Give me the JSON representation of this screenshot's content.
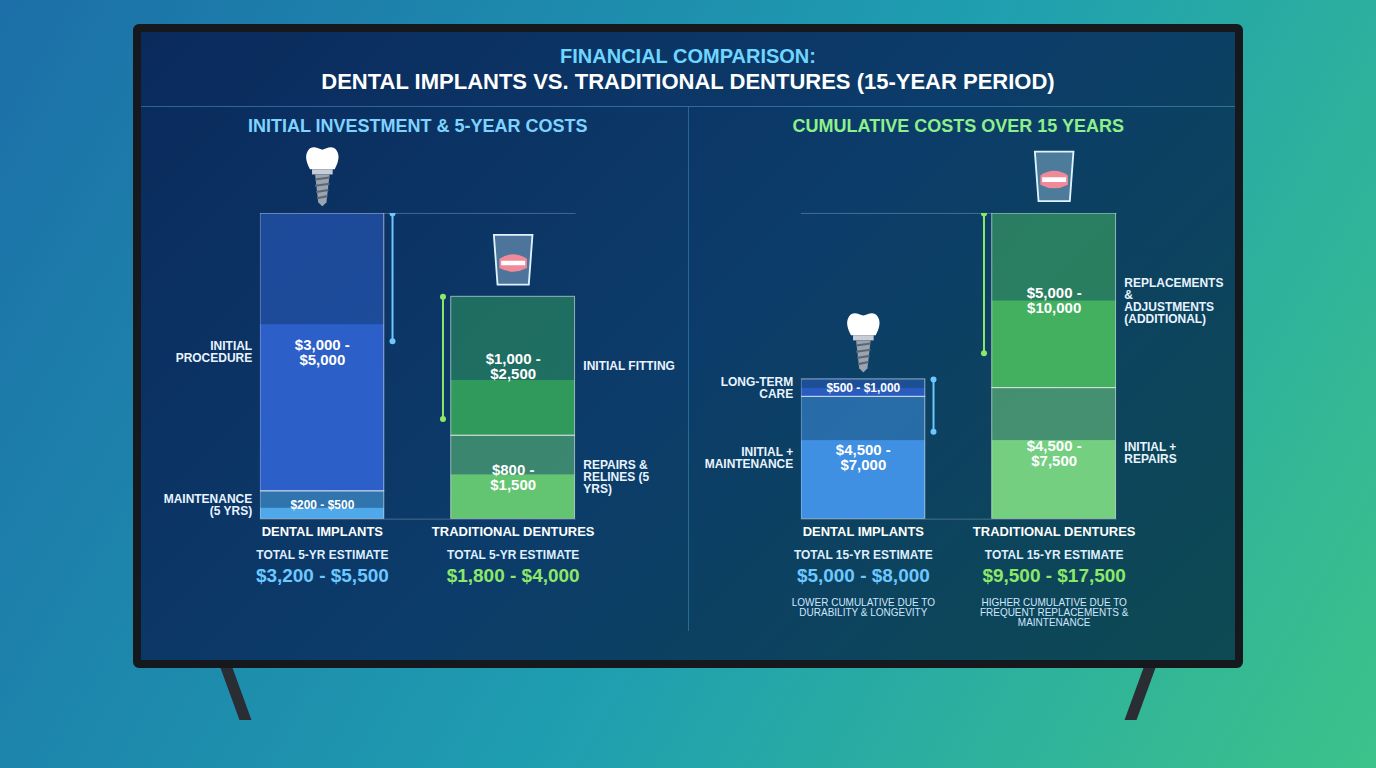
{
  "title": "FINANCIAL COMPARISON:",
  "subtitle": "DENTAL IMPLANTS VS. TRADITIONAL DENTURES (15-YEAR PERIOD)",
  "chart_data": [
    {
      "type": "bar",
      "stacked": true,
      "data_labels": true,
      "tick_labels": false,
      "title": "INITIAL INVESTMENT & 5-YEAR COSTS",
      "ylim": [
        0,
        5500
      ],
      "bars": [
        {
          "category": "DENTAL IMPLANTS",
          "color": "#6cc8ff",
          "segments": [
            {
              "name": "MAINTENANCE (5 YRS)",
              "low": 200,
              "high": 500,
              "value_label": "$200 - $500",
              "color": "#4fa8ea"
            },
            {
              "name": "INITIAL PROCEDURE",
              "low": 3000,
              "high": 5000,
              "value_label": "$3,000 - $5,000",
              "color": "#2d5fc8"
            }
          ],
          "total": {
            "name": "TOTAL 5-YR ESTIMATE",
            "low": 3200,
            "high": 5500,
            "value_label": "$3,200 - $5,500"
          }
        },
        {
          "category": "TRADITIONAL DENTURES",
          "color": "#8de86a",
          "segments": [
            {
              "name": "REPAIRS & RELINES (5 YRS)",
              "low": 800,
              "high": 1500,
              "value_label": "$800 - $1,500",
              "color": "#63c572"
            },
            {
              "name": "INITIAL FITTING",
              "low": 1000,
              "high": 2500,
              "value_label": "$1,000 - $2,500",
              "color": "#2f9a5c"
            }
          ],
          "total": {
            "name": "TOTAL 5-YR ESTIMATE",
            "low": 1800,
            "high": 4000,
            "value_label": "$1,800 - $4,000"
          }
        }
      ]
    },
    {
      "type": "bar",
      "stacked": true,
      "data_labels": true,
      "tick_labels": false,
      "title": "CUMULATIVE COSTS OVER 15 YEARS",
      "ylim": [
        0,
        17500
      ],
      "bars": [
        {
          "category": "DENTAL IMPLANTS",
          "color": "#6cc8ff",
          "segments": [
            {
              "name": "INITIAL + MAINTENANCE",
              "low": 4500,
              "high": 7000,
              "value_label": "$4,500 - $7,000",
              "color": "#3f8fe2"
            },
            {
              "name": "LONG-TERM CARE",
              "low": 500,
              "high": 1000,
              "value_label": "$500 - $1,000",
              "color": "#2a5cc0"
            }
          ],
          "total": {
            "name": "TOTAL 15-YR ESTIMATE",
            "low": 5000,
            "high": 8000,
            "value_label": "$5,000 - $8,000",
            "note": "LOWER CUMULATIVE DUE TO DURABILITY & LONGEVITY"
          }
        },
        {
          "category": "TRADITIONAL DENTURES",
          "color": "#8de86a",
          "segments": [
            {
              "name": "INITIAL + REPAIRS",
              "low": 4500,
              "high": 7500,
              "value_label": "$4,500 - $7,500",
              "color": "#74cf80"
            },
            {
              "name": "REPLACEMENTS & ADJUSTMENTS (ADDITIONAL)",
              "low": 5000,
              "high": 10000,
              "value_label": "$5,000 - $10,000",
              "color": "#43b060"
            }
          ],
          "total": {
            "name": "TOTAL 15-YR ESTIMATE",
            "low": 9500,
            "high": 17500,
            "value_label": "$9,500 - $17,500",
            "note": "HIGHER CUMULATIVE DUE TO FREQUENT REPLACEMENTS & MAINTENANCE"
          }
        }
      ]
    }
  ]
}
